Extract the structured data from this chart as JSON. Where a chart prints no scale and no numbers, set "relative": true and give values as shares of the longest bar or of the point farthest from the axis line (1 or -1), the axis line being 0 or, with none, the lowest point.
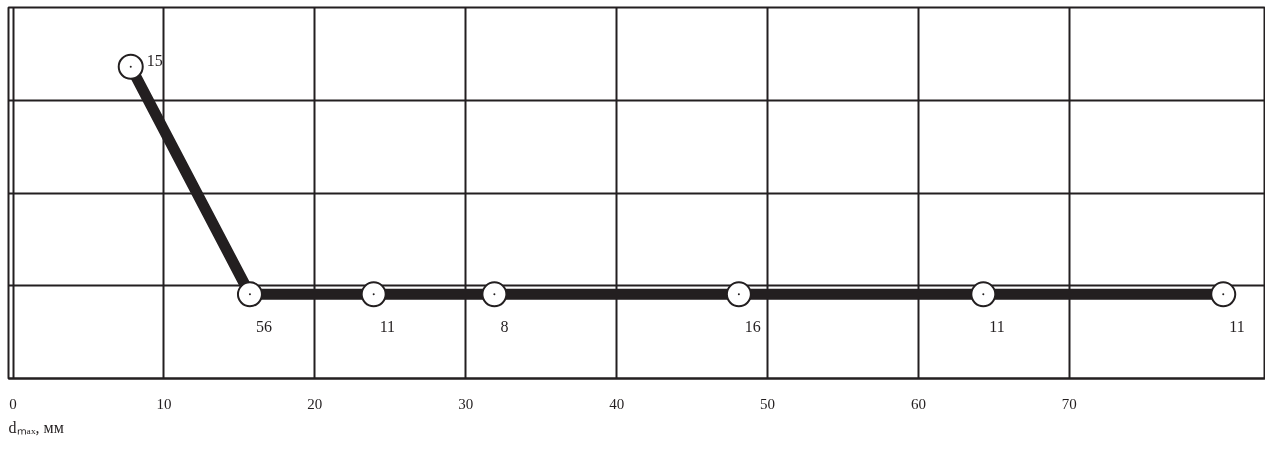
{
  "chart_data": {
    "type": "line",
    "relative": true,
    "xlabel": "dₘₐₓ, мм",
    "x": [
      7.8,
      15.7,
      23.9,
      31.9,
      48.1,
      64.3,
      80.2
    ],
    "series": [
      {
        "color": "#231f20",
        "values": [
          1,
          0.27,
          0.27,
          0.27,
          0.27,
          0.27,
          0.27
        ]
      }
    ],
    "annotations": [
      {
        "text": "15",
        "x": 7.8,
        "y": 1
      },
      {
        "text": "56",
        "x": 15.7,
        "y": 0.27
      },
      {
        "text": "11",
        "x": 23.9,
        "y": 0.27
      },
      {
        "text": "8",
        "x": 31.9,
        "y": 0.27
      },
      {
        "text": "16",
        "x": 48.1,
        "y": 0.27
      },
      {
        "text": "11",
        "x": 64.3,
        "y": 0.27
      },
      {
        "text": "11",
        "x": 80.2,
        "y": 0.27
      }
    ],
    "xlim": [
      -0.3,
      83
    ],
    "xticks": [
      0,
      10,
      20,
      30,
      40,
      50,
      60,
      70
    ],
    "grid": true,
    "marker": "circle",
    "line_style": "solid"
  }
}
